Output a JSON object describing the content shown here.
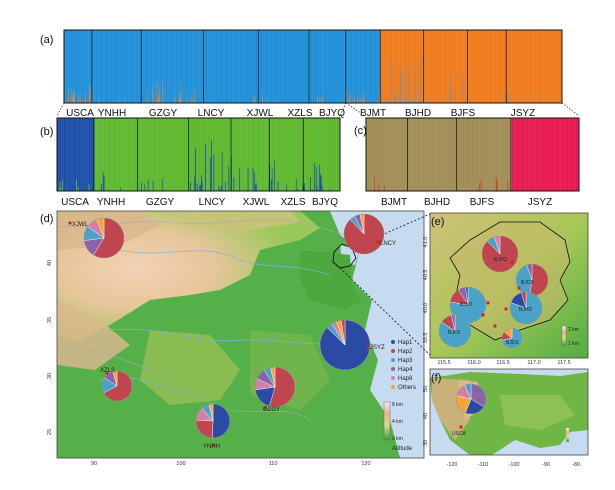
{
  "panels": {
    "a": "(a)",
    "b": "(b)",
    "c": "(c)",
    "d": "(d)",
    "e": "(e)",
    "f": "(f)"
  },
  "structure_a": {
    "labels": [
      "USCA",
      "YNHH",
      "GZGY",
      "LNCY",
      "XJWL",
      "XZLS",
      "BJYQ",
      "BJMT",
      "BJHD",
      "BJFS",
      "JSYZ"
    ],
    "colors": {
      "cluster1": "#1f8fd8",
      "cluster2": "#f07a1a",
      "mix": "#8a8a8a"
    }
  },
  "structure_b": {
    "labels": [
      "USCA",
      "YNHH",
      "GZGY",
      "LNCY",
      "XJWL",
      "XZLS",
      "BJYQ"
    ],
    "colors": {
      "cluster1": "#1a4fa8",
      "cluster2": "#5db82c"
    }
  },
  "structure_c": {
    "labels": [
      "BJMT",
      "BJHD",
      "BJFS",
      "JSYZ"
    ],
    "colors": {
      "cluster1": "#a08c55",
      "cluster2": "#e8184f",
      "minor": "#c8392b"
    }
  },
  "map_d": {
    "sites": [
      "XJWL",
      "LNCY",
      "XZLS",
      "GZGY",
      "YNHH",
      "JSYZ"
    ],
    "lon_ticks": [
      "90",
      "100",
      "110",
      "120"
    ],
    "lat_ticks": [
      "25",
      "30",
      "35",
      "40"
    ],
    "legend": [
      "Hap1",
      "Hap2",
      "Hap3",
      "Hap4",
      "Hap8",
      "Others"
    ],
    "altitude": {
      "title": "Altitude",
      "top": "8 km",
      "mid": "4 km",
      "bottom": "0 km"
    }
  },
  "map_e": {
    "sites": [
      "BJYQ",
      "BJCP",
      "BJMT",
      "BJHD",
      "BJFS",
      "BJDX"
    ],
    "lon_ticks": [
      "115.5",
      "116.0",
      "116.5",
      "117.0",
      "117.5"
    ],
    "lat_ticks": [
      "39.5",
      "40.0",
      "40.5",
      "41.0"
    ],
    "altitude": {
      "top": "2 km",
      "bottom": "1 km"
    }
  },
  "map_f": {
    "sites": [
      "USCA"
    ],
    "lon_ticks": [
      "-120",
      "-110",
      "-100",
      "-90",
      "-80"
    ],
    "lat_ticks": [
      "30",
      "40",
      "50"
    ]
  },
  "hap_colors": {
    "Hap1": "#2b4aa6",
    "Hap2": "#c0454e",
    "Hap3": "#4aa2c8",
    "Hap4": "#8a63a8",
    "Hap8": "#d47fa6",
    "Others": "#f2a63a"
  }
}
